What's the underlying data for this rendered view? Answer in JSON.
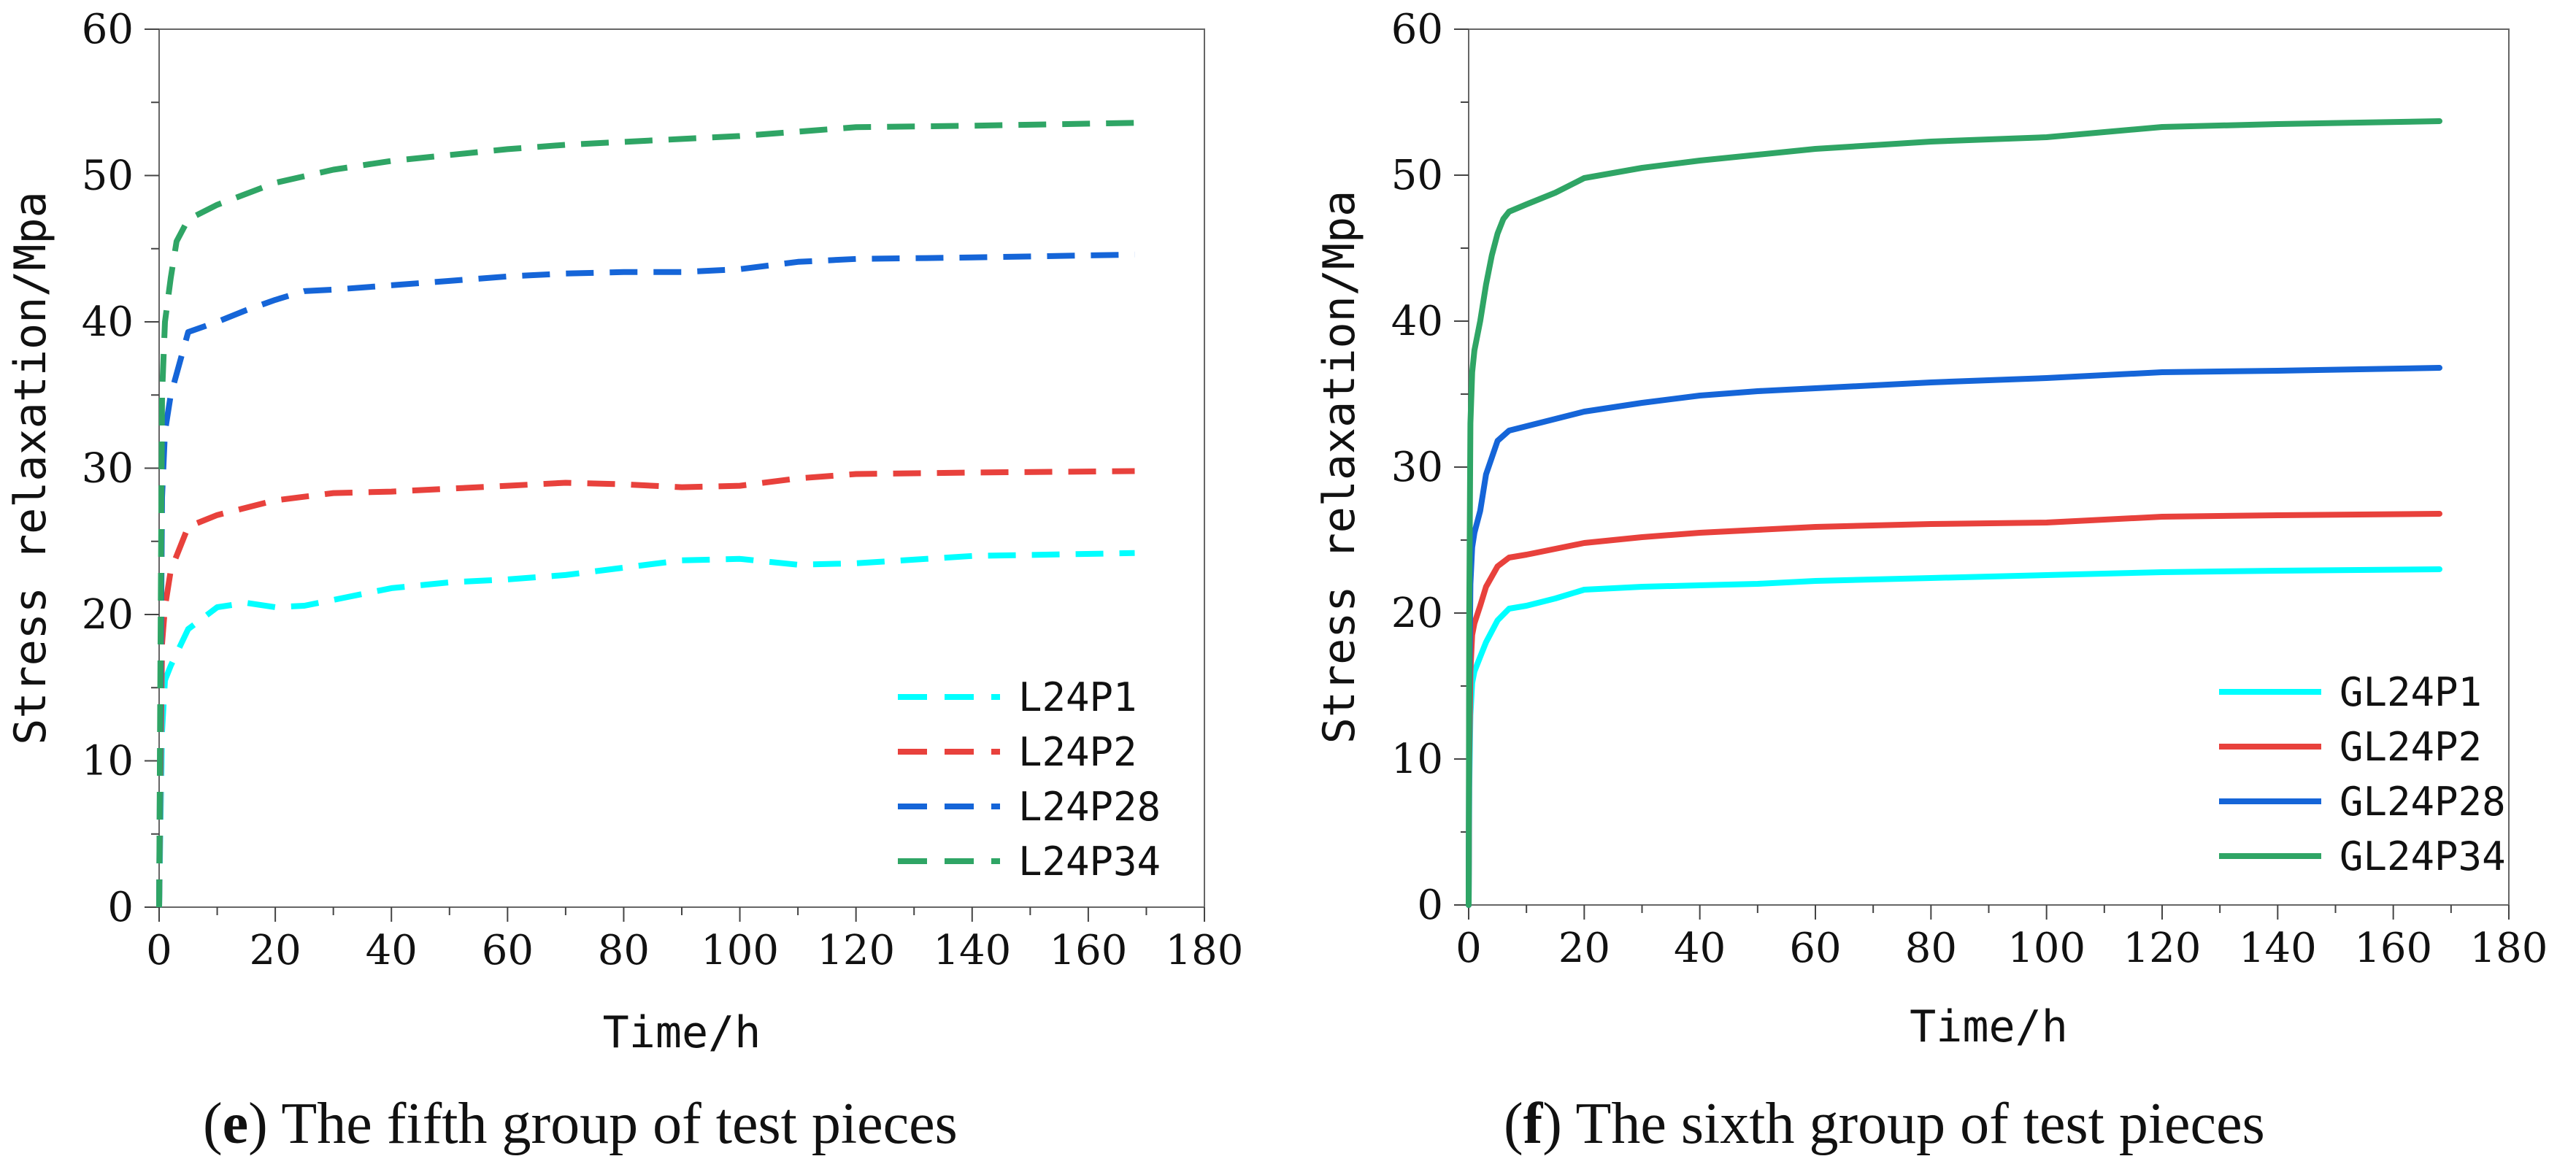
{
  "chart_data": [
    {
      "type": "line",
      "panel_letter": "e",
      "caption_text": "The fifth group of test pieces",
      "xlabel": "Time/h",
      "ylabel": "Stress relaxation/Mpa",
      "xlim": [
        0,
        180
      ],
      "ylim": [
        0,
        60
      ],
      "xticks": [
        0,
        20,
        40,
        60,
        80,
        100,
        120,
        140,
        160,
        180
      ],
      "yticks": [
        0,
        10,
        20,
        30,
        40,
        50,
        60
      ],
      "line_style": "dashed",
      "legend_position": "bottom-right",
      "series": [
        {
          "name": "L24P1",
          "color": "#00ffff",
          "x": [
            0,
            0.2,
            0.5,
            1,
            2,
            5,
            10,
            15,
            20,
            25,
            30,
            40,
            50,
            60,
            70,
            80,
            90,
            100,
            110,
            120,
            140,
            168
          ],
          "y": [
            0,
            5,
            12,
            15.5,
            16.5,
            19,
            20.5,
            20.8,
            20.5,
            20.6,
            21,
            21.8,
            22.2,
            22.4,
            22.7,
            23.2,
            23.7,
            23.8,
            23.4,
            23.5,
            24,
            24.2
          ]
        },
        {
          "name": "L24P2",
          "color": "#e8413c",
          "x": [
            0,
            0.2,
            0.5,
            1,
            2,
            5,
            10,
            20,
            30,
            40,
            50,
            60,
            70,
            80,
            90,
            100,
            110,
            120,
            140,
            168
          ],
          "y": [
            0,
            8,
            18,
            20.5,
            23,
            26,
            26.8,
            27.8,
            28.3,
            28.4,
            28.6,
            28.8,
            29,
            28.9,
            28.7,
            28.8,
            29.3,
            29.6,
            29.7,
            29.8
          ]
        },
        {
          "name": "L24P28",
          "color": "#1565d8",
          "x": [
            0,
            0.2,
            0.5,
            1,
            2,
            5,
            10,
            15,
            20,
            25,
            30,
            40,
            50,
            60,
            70,
            80,
            90,
            100,
            110,
            120,
            140,
            168
          ],
          "y": [
            0,
            12,
            28,
            32.5,
            35,
            39.3,
            40,
            40.8,
            41.5,
            42.1,
            42.2,
            42.5,
            42.8,
            43.1,
            43.3,
            43.4,
            43.4,
            43.6,
            44.1,
            44.3,
            44.4,
            44.6
          ]
        },
        {
          "name": "L24P34",
          "color": "#2fa565",
          "x": [
            0,
            0.2,
            0.5,
            1,
            2,
            3,
            5,
            10,
            20,
            30,
            40,
            50,
            60,
            70,
            80,
            90,
            100,
            110,
            120,
            140,
            168
          ],
          "y": [
            0,
            15,
            35,
            40,
            43,
            45.5,
            47,
            48,
            49.5,
            50.4,
            51,
            51.4,
            51.8,
            52.1,
            52.3,
            52.5,
            52.7,
            53,
            53.3,
            53.4,
            53.6
          ]
        }
      ]
    },
    {
      "type": "line",
      "panel_letter": "f",
      "caption_text": "The sixth group of test pieces",
      "xlabel": "Time/h",
      "ylabel": "Stress relaxation/Mpa",
      "xlim": [
        0,
        180
      ],
      "ylim": [
        0,
        60
      ],
      "xticks": [
        0,
        20,
        40,
        60,
        80,
        100,
        120,
        140,
        160,
        180
      ],
      "yticks": [
        0,
        10,
        20,
        30,
        40,
        50,
        60
      ],
      "line_style": "solid",
      "legend_position": "bottom-right",
      "series": [
        {
          "name": "GL24P1",
          "color": "#00ffff",
          "x": [
            0,
            0.1,
            0.3,
            0.6,
            1,
            2,
            3,
            5,
            7,
            10,
            15,
            20,
            30,
            40,
            50,
            60,
            80,
            100,
            120,
            140,
            168
          ],
          "y": [
            0,
            8,
            13,
            15.2,
            16,
            17,
            18,
            19.5,
            20.3,
            20.5,
            21,
            21.6,
            21.8,
            21.9,
            22,
            22.2,
            22.4,
            22.6,
            22.8,
            22.9,
            23
          ]
        },
        {
          "name": "GL24P2",
          "color": "#e8413c",
          "x": [
            0,
            0.1,
            0.3,
            0.6,
            1,
            2,
            3,
            5,
            7,
            10,
            15,
            20,
            30,
            40,
            50,
            60,
            80,
            100,
            120,
            140,
            168
          ],
          "y": [
            0,
            10,
            16,
            18.5,
            19.3,
            20.5,
            21.8,
            23.2,
            23.8,
            24,
            24.4,
            24.8,
            25.2,
            25.5,
            25.7,
            25.9,
            26.1,
            26.2,
            26.6,
            26.7,
            26.8
          ]
        },
        {
          "name": "GL24P28",
          "color": "#1565d8",
          "x": [
            0,
            0.1,
            0.3,
            0.6,
            1,
            2,
            3,
            5,
            7,
            10,
            15,
            20,
            30,
            40,
            50,
            60,
            80,
            100,
            120,
            140,
            168
          ],
          "y": [
            0,
            14,
            22,
            24.5,
            25.5,
            27,
            29.5,
            31.8,
            32.5,
            32.8,
            33.3,
            33.8,
            34.4,
            34.9,
            35.2,
            35.4,
            35.8,
            36.1,
            36.5,
            36.6,
            36.8
          ]
        },
        {
          "name": "GL24P34",
          "color": "#2fa565",
          "x": [
            0,
            0.1,
            0.3,
            0.6,
            1,
            2,
            3,
            4,
            5,
            6,
            7,
            10,
            15,
            20,
            30,
            40,
            50,
            60,
            80,
            100,
            120,
            140,
            168
          ],
          "y": [
            0,
            20,
            33,
            36.5,
            38,
            40,
            42.5,
            44.5,
            46,
            47,
            47.5,
            48,
            48.8,
            49.8,
            50.5,
            51,
            51.4,
            51.8,
            52.3,
            52.6,
            53.3,
            53.5,
            53.7
          ]
        }
      ]
    }
  ]
}
